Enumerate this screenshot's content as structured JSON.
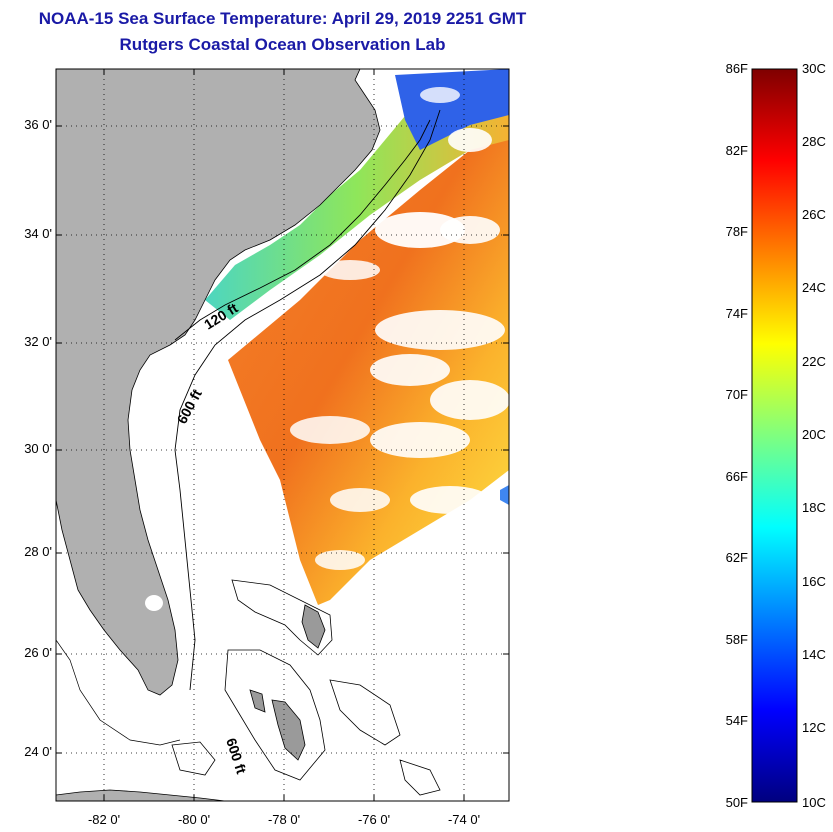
{
  "header": {
    "title": "NOAA-15 Sea Surface Temperature:  April 29, 2019 2251 GMT",
    "subtitle": "Rutgers Coastal Ocean Observation Lab"
  },
  "map": {
    "lat_ticks": [
      "36 0'",
      "34 0'",
      "32 0'",
      "30 0'",
      "28 0'",
      "26 0'",
      "24 0'"
    ],
    "lon_ticks": [
      "-82 0'",
      "-80 0'",
      "-78 0'",
      "-76 0'",
      "-74 0'"
    ],
    "lat_range": [
      23,
      37
    ],
    "lon_range": [
      -83,
      -73
    ],
    "gridlines": "dotted",
    "contour_labels": {
      "c120": "120 ft",
      "c600a": "600 ft",
      "c600b": "600 ft"
    },
    "land_color": "#b0b0b0",
    "cloud_color": "#ffffff"
  },
  "colorbar": {
    "f_labels": [
      "86F",
      "82F",
      "78F",
      "74F",
      "70F",
      "66F",
      "62F",
      "58F",
      "54F",
      "50F"
    ],
    "c_labels": [
      "30C",
      "28C",
      "26C",
      "24C",
      "22C",
      "20C",
      "18C",
      "16C",
      "14C",
      "12C",
      "10C"
    ],
    "range_c": [
      10,
      30
    ],
    "range_f": [
      50,
      86
    ],
    "colors": [
      "#00007f",
      "#0000ff",
      "#007fff",
      "#00ffff",
      "#7fff7f",
      "#ffff00",
      "#ff7f00",
      "#ff0000",
      "#7f0000"
    ]
  }
}
